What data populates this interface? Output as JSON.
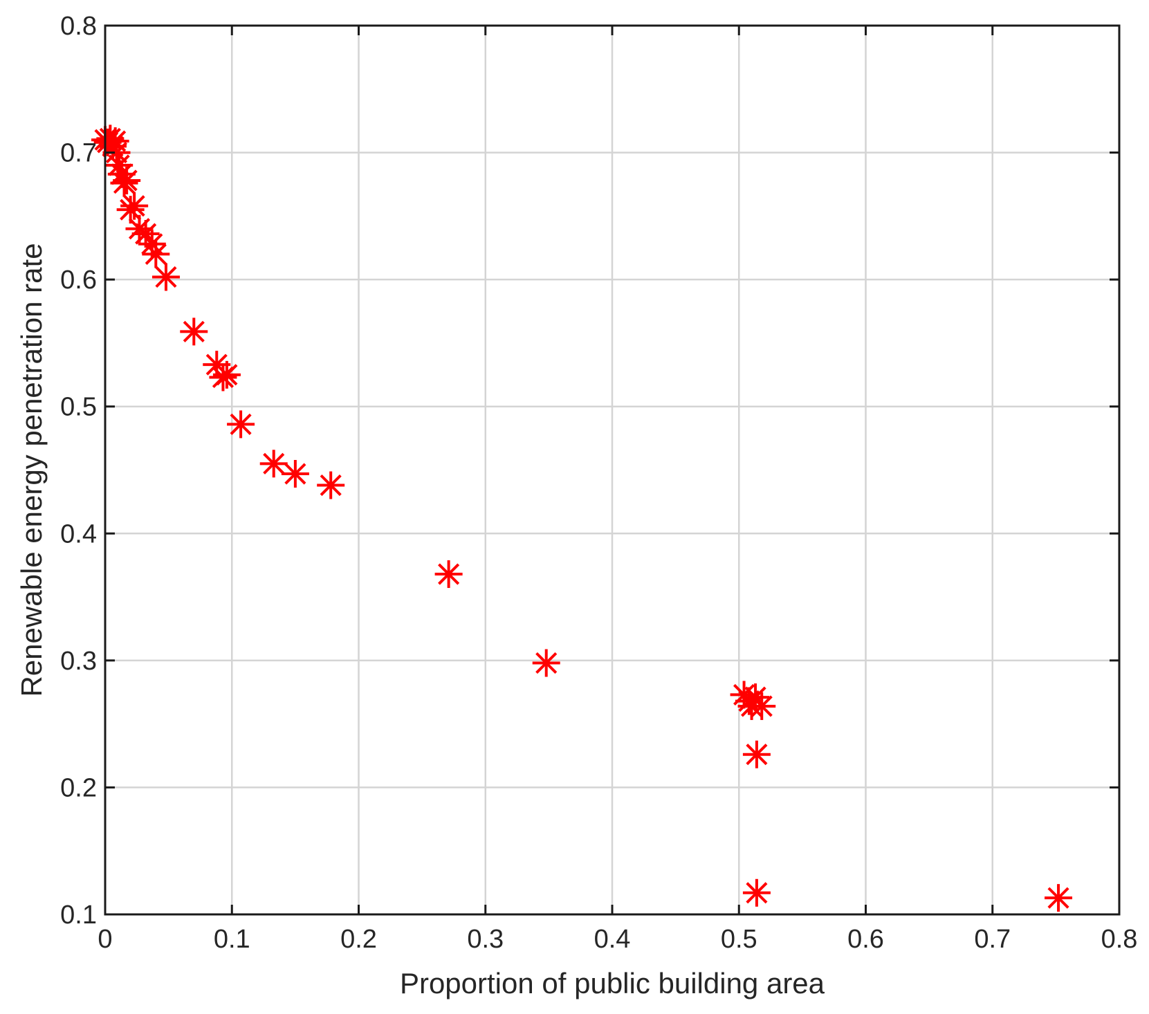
{
  "chart_data": {
    "type": "scatter",
    "title": "",
    "xlabel": "Proportion of public building area",
    "ylabel": "Renewable energy penetration rate",
    "xlim": [
      0,
      0.8
    ],
    "ylim": [
      0.1,
      0.8
    ],
    "xticks": [
      0,
      0.1,
      0.2,
      0.3,
      0.4,
      0.5,
      0.6,
      0.7,
      0.8
    ],
    "yticks": [
      0.1,
      0.2,
      0.3,
      0.4,
      0.5,
      0.6,
      0.7,
      0.8
    ],
    "xtick_labels": [
      "0",
      "0.1",
      "0.2",
      "0.3",
      "0.4",
      "0.5",
      "0.6",
      "0.7",
      "0.8"
    ],
    "ytick_labels": [
      "0.1",
      "0.2",
      "0.3",
      "0.4",
      "0.5",
      "0.6",
      "0.7",
      "0.8"
    ],
    "grid": true,
    "marker": "asterisk",
    "marker_color": "#ff0000",
    "points": [
      {
        "x": 0.0,
        "y": 0.71
      },
      {
        "x": 0.002,
        "y": 0.708
      },
      {
        "x": 0.004,
        "y": 0.711
      },
      {
        "x": 0.006,
        "y": 0.705
      },
      {
        "x": 0.008,
        "y": 0.709
      },
      {
        "x": 0.009,
        "y": 0.7
      },
      {
        "x": 0.011,
        "y": 0.69
      },
      {
        "x": 0.013,
        "y": 0.683
      },
      {
        "x": 0.015,
        "y": 0.676
      },
      {
        "x": 0.017,
        "y": 0.678
      },
      {
        "x": 0.02,
        "y": 0.655
      },
      {
        "x": 0.023,
        "y": 0.658
      },
      {
        "x": 0.027,
        "y": 0.64
      },
      {
        "x": 0.032,
        "y": 0.636
      },
      {
        "x": 0.037,
        "y": 0.628
      },
      {
        "x": 0.04,
        "y": 0.62
      },
      {
        "x": 0.048,
        "y": 0.602
      },
      {
        "x": 0.07,
        "y": 0.559
      },
      {
        "x": 0.088,
        "y": 0.533
      },
      {
        "x": 0.093,
        "y": 0.523
      },
      {
        "x": 0.096,
        "y": 0.525
      },
      {
        "x": 0.107,
        "y": 0.486
      },
      {
        "x": 0.133,
        "y": 0.455
      },
      {
        "x": 0.15,
        "y": 0.447
      },
      {
        "x": 0.178,
        "y": 0.438
      },
      {
        "x": 0.271,
        "y": 0.368
      },
      {
        "x": 0.348,
        "y": 0.298
      },
      {
        "x": 0.504,
        "y": 0.273
      },
      {
        "x": 0.508,
        "y": 0.268
      },
      {
        "x": 0.51,
        "y": 0.264
      },
      {
        "x": 0.513,
        "y": 0.271
      },
      {
        "x": 0.518,
        "y": 0.264
      },
      {
        "x": 0.514,
        "y": 0.226
      },
      {
        "x": 0.514,
        "y": 0.117
      },
      {
        "x": 0.752,
        "y": 0.113
      }
    ],
    "colors": {
      "grid": "#d4d4d4",
      "axes": "#1a1a1a",
      "text": "#262626"
    }
  }
}
